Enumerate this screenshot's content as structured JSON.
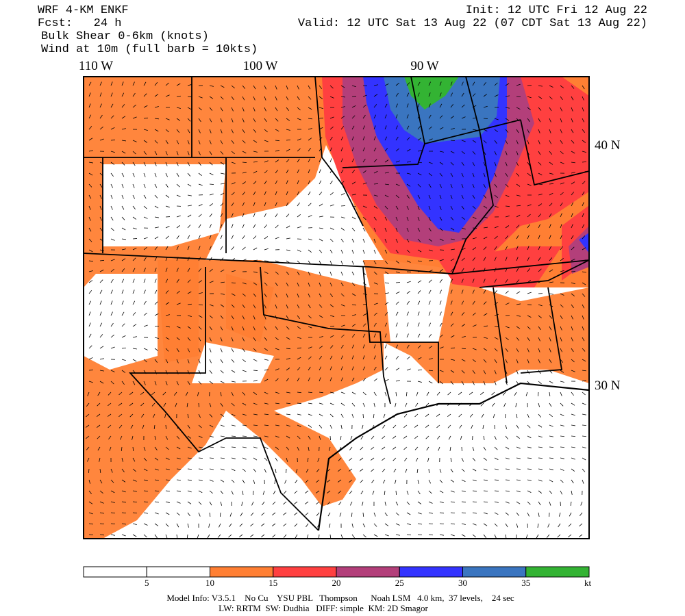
{
  "header": {
    "model": "WRF 4-KM ENKF",
    "forecast": "Fcst:   24 h",
    "field": "Bulk Shear 0-6km (knots)",
    "wind": "Wind at 10m (full barb = 10kts)",
    "init": "Init: 12 UTC Fri 12 Aug 22",
    "valid": "Valid: 12 UTC Sat 13 Aug 22 (07 CDT Sat 13 Aug 22)"
  },
  "map": {
    "lon_labels": [
      "110 W",
      "100 W",
      "90 W"
    ],
    "lat_labels": [
      "40 N",
      "30 N"
    ]
  },
  "colorbar": {
    "colors": [
      "#ffffff",
      "#ffffff",
      "#ff7f33",
      "#ff4040",
      "#b33f7a",
      "#3333ff",
      "#3a75c0",
      "#33b333"
    ],
    "labels": [
      5,
      10,
      15,
      20,
      25,
      30,
      35
    ],
    "unit": "kt"
  },
  "footer": {
    "line1": "Model Info: V3.5.1    No Cu    YSU PBL   Thompson      Noah LSM   4.0 km,  37 levels,    24 sec",
    "line2": "LW: RRTM  SW: Dudhia   DIFF: simple  KM: 2D Smagor"
  }
}
